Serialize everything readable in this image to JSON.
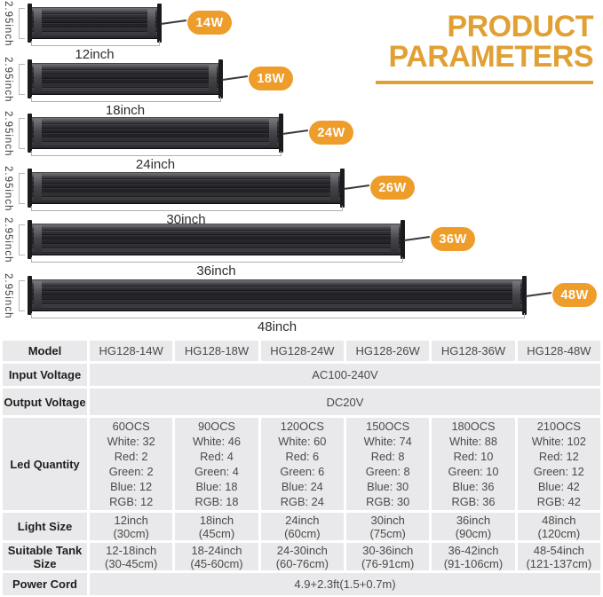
{
  "title": {
    "line1": "PRODUCT",
    "line2": "PARAMETERS"
  },
  "colors": {
    "accent_badge_orange": "#ee9d2b",
    "title_orange": "#e1a033",
    "table_cell_bg": "#e9e9eb",
    "bar_body_dark": "#27272b"
  },
  "lights": [
    {
      "height_label": "2.95inch",
      "length_label": "12inch",
      "wattage": "14W"
    },
    {
      "height_label": "2.95inch",
      "length_label": "18inch",
      "wattage": "18W"
    },
    {
      "height_label": "2.95inch",
      "length_label": "24inch",
      "wattage": "24W"
    },
    {
      "height_label": "2.95inch",
      "length_label": "30inch",
      "wattage": "26W"
    },
    {
      "height_label": "2.95inch",
      "length_label": "36inch",
      "wattage": "36W"
    },
    {
      "height_label": "2.95inch",
      "length_label": "48inch",
      "wattage": "48W"
    }
  ],
  "table": {
    "rows": [
      {
        "label": "Model",
        "values": [
          "HG128-14W",
          "HG128-18W",
          "HG128-24W",
          "HG128-26W",
          "HG128-36W",
          "HG128-48W"
        ]
      },
      {
        "label": "Input Voltage",
        "span": "AC100-240V"
      },
      {
        "label": "Output Voltage",
        "span": "DC20V"
      },
      {
        "label": "Led Quantity",
        "values": [
          [
            "60OCS",
            "White: 32",
            "Red: 2",
            "Green: 2",
            "Blue: 12",
            "RGB: 12"
          ],
          [
            "90OCS",
            "White: 46",
            "Red: 4",
            "Green: 4",
            "Blue: 18",
            "RGB: 18"
          ],
          [
            "120OCS",
            "White: 60",
            "Red: 6",
            "Green: 6",
            "Blue: 24",
            "RGB: 24"
          ],
          [
            "150OCS",
            "White: 74",
            "Red: 8",
            "Green: 8",
            "Blue: 30",
            "RGB: 30"
          ],
          [
            "180OCS",
            "White: 88",
            "Red: 10",
            "Green: 10",
            "Blue: 36",
            "RGB: 36"
          ],
          [
            "210OCS",
            "White: 102",
            "Red: 12",
            "Green: 12",
            "Blue: 42",
            "RGB: 42"
          ]
        ]
      },
      {
        "label": "Light Size",
        "values": [
          [
            "12inch",
            "(30cm)"
          ],
          [
            "18inch",
            "(45cm)"
          ],
          [
            "24inch",
            "(60cm)"
          ],
          [
            "30inch",
            "(75cm)"
          ],
          [
            "36inch",
            "(90cm)"
          ],
          [
            "48inch",
            "(120cm)"
          ]
        ]
      },
      {
        "label": "Suitable Tank Size",
        "values": [
          [
            "12-18inch",
            "(30-45cm)"
          ],
          [
            "18-24inch",
            "(45-60cm)"
          ],
          [
            "24-30inch",
            "(60-76cm)"
          ],
          [
            "30-36inch",
            "(76-91cm)"
          ],
          [
            "36-42inch",
            "(91-106cm)"
          ],
          [
            "48-54inch",
            "(121-137cm)"
          ]
        ]
      },
      {
        "label": "Power Cord",
        "span": "4.9+2.3ft(1.5+0.7m)"
      }
    ]
  }
}
